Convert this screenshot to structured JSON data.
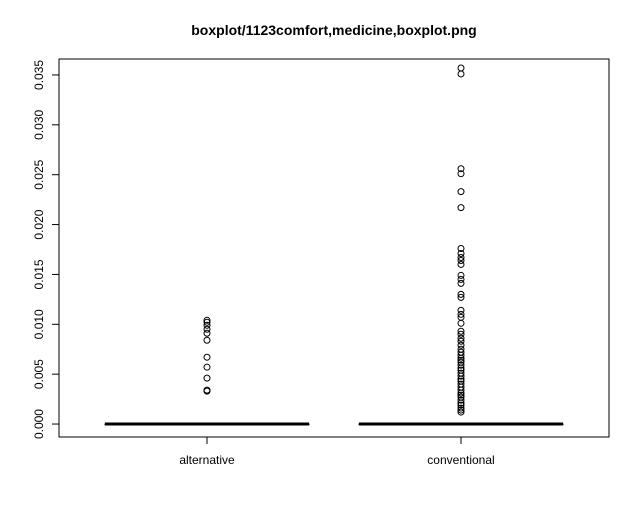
{
  "chart_data": {
    "type": "boxplot",
    "title": "boxplot/1123comfort,medicine,boxplot.png",
    "xlabel": "",
    "ylabel": "",
    "ylim": [
      -0.0013,
      0.0366
    ],
    "yticks": [
      "0.000",
      "0.005",
      "0.010",
      "0.015",
      "0.020",
      "0.025",
      "0.030",
      "0.035"
    ],
    "grid": false,
    "categories": [
      "alternative",
      "conventional"
    ],
    "boxes": [
      {
        "name": "alternative",
        "min": 0,
        "q1": 0,
        "median": 0,
        "q3": 0,
        "max": 0,
        "outliers": [
          0.0033,
          0.0034,
          0.0046,
          0.0057,
          0.0067,
          0.0084,
          0.0091,
          0.0095,
          0.0099,
          0.0102,
          0.0104
        ]
      },
      {
        "name": "conventional",
        "min": 0,
        "q1": 0,
        "median": 0,
        "q3": 0,
        "max": 0,
        "outliers": [
          0.0012,
          0.0014,
          0.0016,
          0.0019,
          0.0021,
          0.0024,
          0.0027,
          0.0029,
          0.0031,
          0.0034,
          0.0037,
          0.004,
          0.0043,
          0.0045,
          0.0048,
          0.0051,
          0.0054,
          0.0056,
          0.0059,
          0.0062,
          0.0064,
          0.0066,
          0.0069,
          0.0072,
          0.0075,
          0.0079,
          0.0083,
          0.0086,
          0.009,
          0.0093,
          0.0101,
          0.0107,
          0.011,
          0.0114,
          0.0127,
          0.013,
          0.0141,
          0.0145,
          0.0149,
          0.016,
          0.0164,
          0.0167,
          0.0171,
          0.0176,
          0.0217,
          0.0233,
          0.0251,
          0.0256,
          0.0351,
          0.0357
        ]
      }
    ]
  }
}
